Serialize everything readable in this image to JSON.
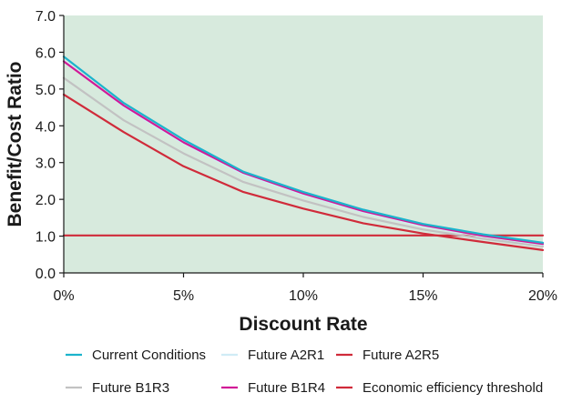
{
  "chart_data": {
    "type": "line",
    "xlabel": "Discount Rate",
    "ylabel": "Benefit/Cost Ratio",
    "xlim": [
      0,
      20
    ],
    "ylim": [
      0,
      7
    ],
    "x_ticks": [
      "0%",
      "5%",
      "10%",
      "15%",
      "20%"
    ],
    "y_ticks": [
      "0.0",
      "1.0",
      "2.0",
      "3.0",
      "4.0",
      "5.0",
      "6.0",
      "7.0"
    ],
    "x_tick_values": [
      0,
      5,
      10,
      15,
      20
    ],
    "y_tick_values": [
      0,
      1,
      2,
      3,
      4,
      5,
      6,
      7
    ],
    "grid": false,
    "background": "#d7eadd",
    "legend_position": "bottom",
    "x": [
      0,
      2.5,
      5,
      7.5,
      10,
      12.5,
      15,
      17.5,
      20
    ],
    "series": [
      {
        "name": "Current Conditions",
        "color": "#1bb3cc",
        "values": [
          5.88,
          4.62,
          3.62,
          2.75,
          2.2,
          1.72,
          1.33,
          1.05,
          0.82
        ]
      },
      {
        "name": "Future A2R1",
        "color": "#d0ecf6",
        "values": [
          5.78,
          4.52,
          3.52,
          2.68,
          2.13,
          1.65,
          1.27,
          0.99,
          0.77
        ]
      },
      {
        "name": "Future A2R5",
        "color": "#d02b3a",
        "values": [
          4.85,
          3.83,
          2.9,
          2.2,
          1.75,
          1.35,
          1.07,
          0.84,
          0.62
        ]
      },
      {
        "name": "Future B1R3",
        "color": "#c2c2c2",
        "values": [
          5.3,
          4.15,
          3.25,
          2.47,
          1.97,
          1.52,
          1.18,
          0.93,
          0.72
        ]
      },
      {
        "name": "Future B1R4",
        "color": "#d11a96",
        "values": [
          5.75,
          4.55,
          3.55,
          2.72,
          2.16,
          1.68,
          1.3,
          1.01,
          0.79
        ]
      },
      {
        "name": "Economic efficiency threshold",
        "color": "#d02b3a",
        "values": [
          1.02,
          1.02,
          1.02,
          1.02,
          1.02,
          1.02,
          1.02,
          1.02,
          1.02
        ]
      }
    ],
    "legend_order": [
      0,
      1,
      2,
      3,
      4,
      5
    ]
  }
}
